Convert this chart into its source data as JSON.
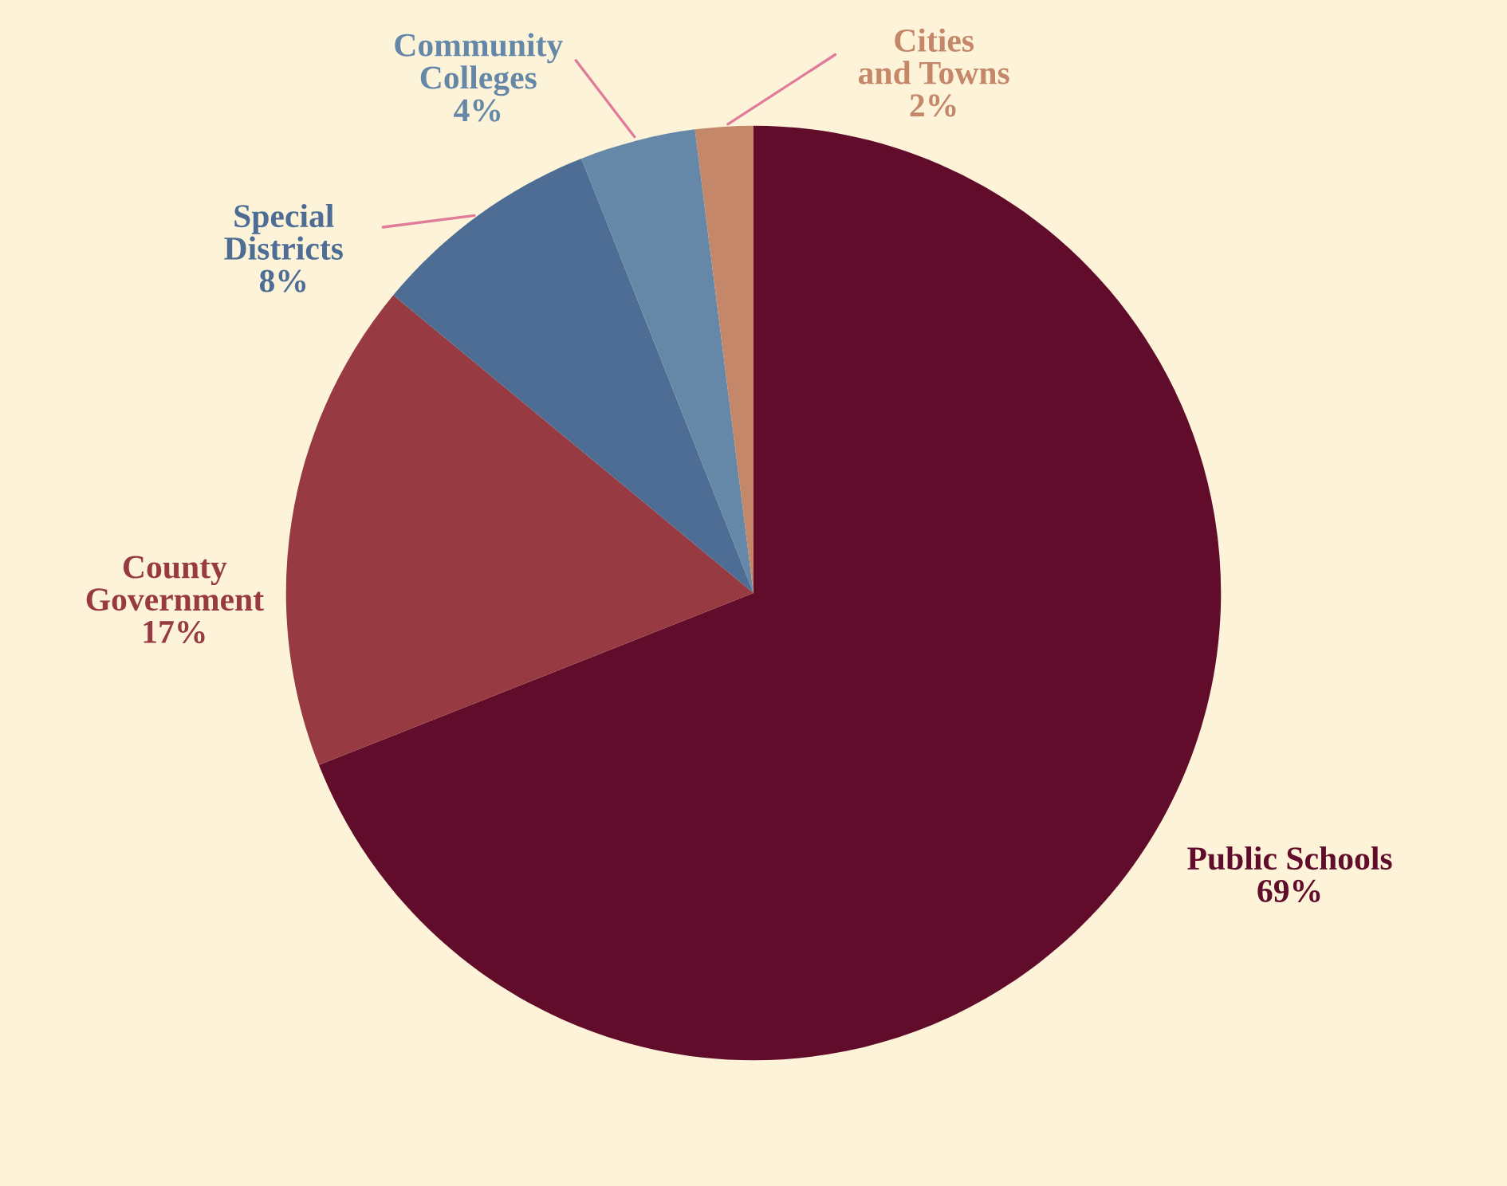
{
  "chart_data": {
    "type": "pie",
    "categories": [
      "Public Schools",
      "County Government",
      "Special Districts",
      "Community Colleges",
      "Cities and Towns"
    ],
    "values": [
      69,
      17,
      8,
      4,
      2
    ],
    "colors": [
      "#620c2c",
      "#973a41",
      "#4d6d94",
      "#6688a8",
      "#c4876a"
    ],
    "value_labels": [
      "69%",
      "17%",
      "8%",
      "4%",
      "2%"
    ],
    "legend": false
  }
}
